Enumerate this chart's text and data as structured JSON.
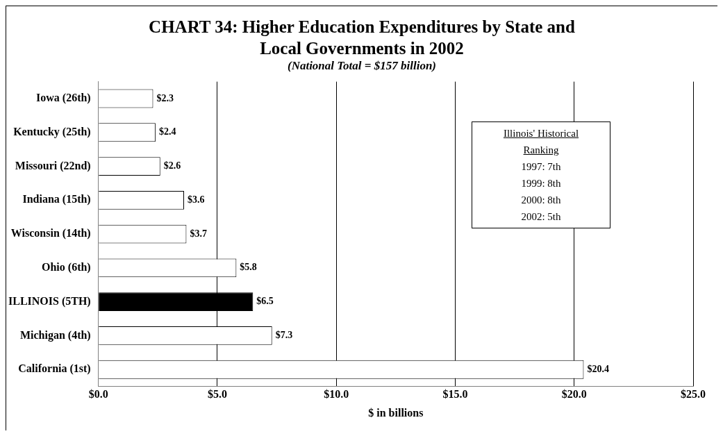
{
  "chart_data": {
    "type": "bar",
    "orientation": "horizontal",
    "title": "CHART 34: Higher Education Expenditures by State and Local Governments in 2002",
    "subtitle": "(National Total = $157 billion)",
    "xlabel": "$ in billions",
    "categories": [
      "Iowa (26th)",
      "Kentucky (25th)",
      "Missouri (22nd)",
      "Indiana (15th)",
      "Wisconsin (14th)",
      "Ohio (6th)",
      "ILLINOIS (5TH)",
      "Michigan (4th)",
      "California (1st)"
    ],
    "values": [
      2.3,
      2.4,
      2.6,
      3.6,
      3.7,
      5.8,
      6.5,
      7.3,
      20.4
    ],
    "colors": [
      "#ffffff",
      "#ffffff",
      "#ffffff",
      "#ffffff",
      "#ffffff",
      "#ffffff",
      "#000000",
      "#ffffff",
      "#ffffff"
    ],
    "value_labels": [
      "$2.3",
      "$2.4",
      "$2.6",
      "$3.6",
      "$3.7",
      "$5.8",
      "$6.5",
      "$7.3",
      "$20.4"
    ],
    "xlim": [
      0,
      25
    ],
    "xticks": [
      {
        "value": 0,
        "label": "$0.0"
      },
      {
        "value": 5,
        "label": "$5.0"
      },
      {
        "value": 10,
        "label": "$10.0"
      },
      {
        "value": 15,
        "label": "$15.0"
      },
      {
        "value": 20,
        "label": "$20.0"
      },
      {
        "value": 25,
        "label": "$25.0"
      }
    ],
    "grid": "x",
    "legend": false,
    "annotations": [
      "Illinois' Historical Ranking",
      "1997: 7th",
      "1999: 8th",
      "2000: 8th",
      "2002: 5th"
    ]
  }
}
